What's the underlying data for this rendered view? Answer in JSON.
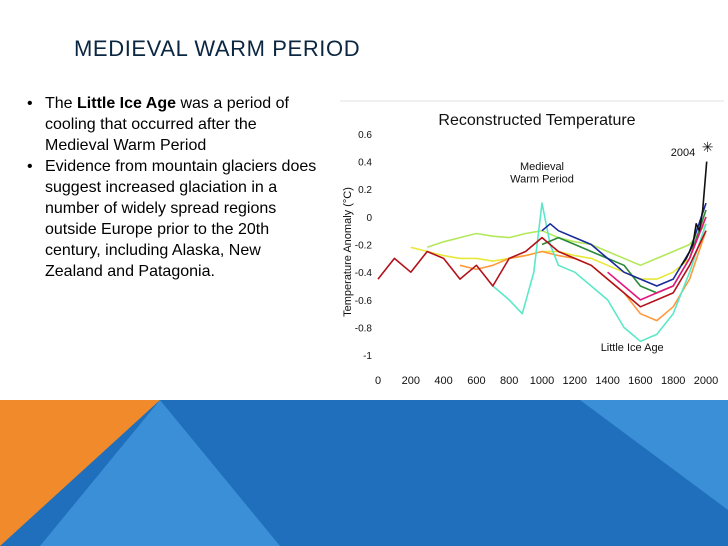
{
  "slide": {
    "title": "MEDIEVAL WARM PERIOD",
    "bullets": [
      {
        "marker": "•",
        "prefix": "The ",
        "bold": "Little Ice Age",
        "suffix": " was a period of cooling that occurred after the Medieval Warm Period"
      },
      {
        "marker": "•",
        "prefix": "Evidence from mountain glaciers does suggest increased glaciation in a number of widely spread regions outside Europe prior to the 20th century, including Alaska, New Zealand and Patagonia.",
        "bold": "",
        "suffix": ""
      }
    ],
    "colors": {
      "title": "#0b2640",
      "band_blue": "#1f6fbd",
      "band_orange": "#f08a2a",
      "band_light": "#3b8fd6"
    }
  },
  "chart_data": {
    "type": "line",
    "title": "Reconstructed Temperature",
    "xlabel": "",
    "ylabel": "Temperature Anomaly (°C)",
    "xlim": [
      0,
      2000
    ],
    "ylim": [
      -1.1,
      0.65
    ],
    "x_ticks": [
      0,
      200,
      400,
      600,
      800,
      1000,
      1200,
      1400,
      1600,
      1800,
      2000
    ],
    "y_ticks": [
      0.6,
      0.4,
      0.2,
      0,
      -0.2,
      -0.4,
      -0.6,
      -0.8,
      -1
    ],
    "y_tick_labels": [
      "0.6",
      "0.4",
      "0.2",
      "0",
      "-0.2",
      "-0.4",
      "-0.6",
      "-0.8",
      "-1"
    ],
    "annotations": [
      {
        "text": "Medieval",
        "x": 1000,
        "y": 0.34
      },
      {
        "text": "Warm Period",
        "x": 1000,
        "y": 0.25
      },
      {
        "text": "Little Ice Age",
        "x": 1550,
        "y": -0.97
      },
      {
        "text": "2004",
        "x": 1860,
        "y": 0.44
      },
      {
        "text": "✳",
        "x": 2010,
        "y": 0.47
      }
    ],
    "series": [
      {
        "color": "#e8e83a",
        "x": [
          200,
          300,
          400,
          500,
          600,
          700,
          800,
          900,
          1000,
          1100,
          1200,
          1300,
          1400,
          1500,
          1600,
          1700,
          1800,
          1900,
          2000
        ],
        "y": [
          -0.22,
          -0.25,
          -0.28,
          -0.3,
          -0.3,
          -0.32,
          -0.3,
          -0.28,
          -0.25,
          -0.25,
          -0.28,
          -0.3,
          -0.35,
          -0.4,
          -0.45,
          -0.45,
          -0.4,
          -0.3,
          0.0
        ]
      },
      {
        "color": "#b4e85a",
        "x": [
          300,
          400,
          500,
          600,
          700,
          800,
          900,
          1000,
          1100,
          1200,
          1300,
          1400,
          1500,
          1600,
          1700,
          1800,
          1900,
          2000
        ],
        "y": [
          -0.22,
          -0.18,
          -0.15,
          -0.12,
          -0.14,
          -0.15,
          -0.12,
          -0.1,
          -0.15,
          -0.18,
          -0.2,
          -0.25,
          -0.3,
          -0.35,
          -0.3,
          -0.25,
          -0.2,
          -0.05
        ]
      },
      {
        "color": "#ff9a3c",
        "x": [
          500,
          600,
          700,
          800,
          900,
          1000,
          1100,
          1200,
          1300,
          1400,
          1500,
          1600,
          1700,
          1800,
          1900,
          2000
        ],
        "y": [
          -0.35,
          -0.38,
          -0.35,
          -0.3,
          -0.28,
          -0.25,
          -0.28,
          -0.3,
          -0.35,
          -0.45,
          -0.55,
          -0.7,
          -0.75,
          -0.65,
          -0.45,
          -0.1
        ]
      },
      {
        "color": "#5be8c8",
        "x": [
          700,
          800,
          880,
          950,
          1000,
          1050,
          1100,
          1200,
          1300,
          1400,
          1500,
          1600,
          1700,
          1800,
          1900,
          2000
        ],
        "y": [
          -0.5,
          -0.6,
          -0.7,
          -0.4,
          0.1,
          -0.2,
          -0.35,
          -0.4,
          -0.5,
          -0.6,
          -0.8,
          -0.9,
          -0.85,
          -0.7,
          -0.4,
          -0.05
        ]
      },
      {
        "color": "#2a8a3a",
        "x": [
          1000,
          1100,
          1200,
          1300,
          1400,
          1500,
          1600,
          1700,
          1800,
          1900,
          2000
        ],
        "y": [
          -0.2,
          -0.15,
          -0.2,
          -0.25,
          -0.3,
          -0.35,
          -0.5,
          -0.55,
          -0.5,
          -0.3,
          0.05
        ]
      },
      {
        "color": "#1a2a9a",
        "x": [
          1000,
          1050,
          1100,
          1200,
          1300,
          1400,
          1500,
          1600,
          1700,
          1800,
          1900,
          2000
        ],
        "y": [
          -0.1,
          -0.05,
          -0.1,
          -0.15,
          -0.2,
          -0.3,
          -0.4,
          -0.45,
          -0.5,
          -0.45,
          -0.25,
          0.1
        ]
      },
      {
        "color": "#b3121a",
        "x": [
          0,
          100,
          200,
          300,
          400,
          500,
          600,
          700,
          800,
          900,
          1000,
          1100,
          1200,
          1300,
          1400,
          1500,
          1600,
          1700,
          1800,
          1900,
          2000
        ],
        "y": [
          -0.45,
          -0.3,
          -0.4,
          -0.25,
          -0.3,
          -0.45,
          -0.35,
          -0.5,
          -0.3,
          -0.25,
          -0.15,
          -0.25,
          -0.3,
          -0.35,
          -0.45,
          -0.55,
          -0.65,
          -0.6,
          -0.55,
          -0.35,
          -0.1
        ]
      },
      {
        "color": "#e6157e",
        "x": [
          1400,
          1500,
          1600,
          1700,
          1800,
          1900,
          2000
        ],
        "y": [
          -0.4,
          -0.5,
          -0.6,
          -0.55,
          -0.5,
          -0.3,
          0.0
        ]
      },
      {
        "color": "#111111",
        "x": [
          1850,
          1880,
          1900,
          1920,
          1940,
          1960,
          1980,
          2004
        ],
        "y": [
          -0.35,
          -0.3,
          -0.25,
          -0.2,
          -0.05,
          -0.1,
          0.05,
          0.4
        ]
      }
    ]
  }
}
